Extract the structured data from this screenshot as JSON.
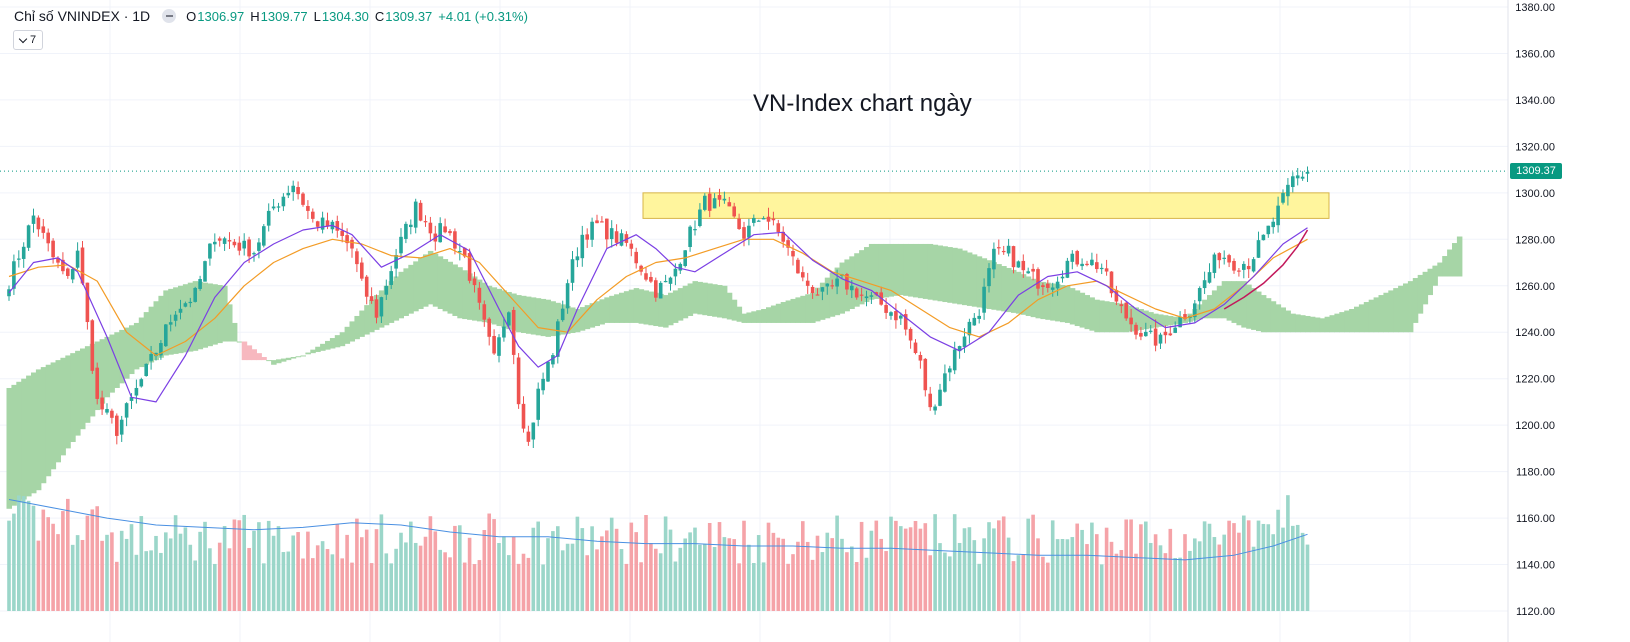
{
  "legend": {
    "symbol": "Chỉ số VNINDEX · 1D",
    "open_label": "O",
    "open": "1306.97",
    "high_label": "H",
    "high": "1309.77",
    "low_label": "L",
    "low": "1304.30",
    "close_label": "C",
    "close": "1309.37",
    "change": "+4.01 (+0.31%)"
  },
  "indicators_button": {
    "count": "7"
  },
  "annotation": "VN-Index chart ngày",
  "last_price_label": "1309.37",
  "colors": {
    "up": "#26a69a",
    "down": "#ef5350",
    "volume_up": "#9bd6c9",
    "volume_down": "#f5a3a8",
    "cloud_bull": "#a6d5a6",
    "cloud_bear": "#f7b8bf",
    "ma_purple": "#7b3fe4",
    "ma_orange": "#f39c26",
    "ma_red": "#c2185b",
    "volume_ma": "#4a90e2",
    "zone_fill": "#fff59d",
    "zone_border": "#d7b548"
  },
  "chart_data": {
    "type": "candlestick",
    "title": "VN-Index chart ngày",
    "timeframe": "1D",
    "ylim": [
      1120,
      1380
    ],
    "y_ticks": [
      "1380.00",
      "1360.00",
      "1340.00",
      "1320.00",
      "1300.00",
      "1280.00",
      "1260.00",
      "1240.00",
      "1220.00",
      "1200.00",
      "1180.00",
      "1160.00",
      "1140.00",
      "1120.00"
    ],
    "y_tick_values": [
      1380,
      1360,
      1340,
      1320,
      1300,
      1280,
      1260,
      1240,
      1220,
      1200,
      1180,
      1160,
      1140,
      1120
    ],
    "last_price": 1309.37,
    "resistance_zone": {
      "from": 1289,
      "to": 1300
    },
    "waypoints": [
      [
        0,
        1262
      ],
      [
        5,
        1290
      ],
      [
        9,
        1272
      ],
      [
        12,
        1262
      ],
      [
        14,
        1276
      ],
      [
        18,
        1210
      ],
      [
        22,
        1198
      ],
      [
        26,
        1215
      ],
      [
        30,
        1232
      ],
      [
        34,
        1250
      ],
      [
        38,
        1256
      ],
      [
        42,
        1282
      ],
      [
        46,
        1278
      ],
      [
        50,
        1275
      ],
      [
        54,
        1294
      ],
      [
        58,
        1304
      ],
      [
        62,
        1288
      ],
      [
        66,
        1285
      ],
      [
        70,
        1276
      ],
      [
        72,
        1260
      ],
      [
        75,
        1248
      ],
      [
        79,
        1274
      ],
      [
        83,
        1294
      ],
      [
        87,
        1282
      ],
      [
        89,
        1285
      ],
      [
        93,
        1272
      ],
      [
        96,
        1250
      ],
      [
        99,
        1228
      ],
      [
        102,
        1252
      ],
      [
        104,
        1212
      ],
      [
        106,
        1192
      ],
      [
        108,
        1214
      ],
      [
        111,
        1232
      ],
      [
        114,
        1262
      ],
      [
        117,
        1282
      ],
      [
        120,
        1286
      ],
      [
        123,
        1282
      ],
      [
        126,
        1278
      ],
      [
        129,
        1268
      ],
      [
        132,
        1258
      ],
      [
        135,
        1262
      ],
      [
        138,
        1278
      ],
      [
        142,
        1296
      ],
      [
        146,
        1294
      ],
      [
        150,
        1282
      ],
      [
        154,
        1291
      ],
      [
        158,
        1280
      ],
      [
        162,
        1262
      ],
      [
        166,
        1256
      ],
      [
        170,
        1262
      ],
      [
        174,
        1256
      ],
      [
        178,
        1252
      ],
      [
        182,
        1246
      ],
      [
        186,
        1226
      ],
      [
        188,
        1206
      ],
      [
        191,
        1222
      ],
      [
        195,
        1240
      ],
      [
        198,
        1250
      ],
      [
        201,
        1273
      ],
      [
        204,
        1274
      ],
      [
        207,
        1266
      ],
      [
        210,
        1262
      ],
      [
        213,
        1262
      ],
      [
        216,
        1270
      ],
      [
        219,
        1272
      ],
      [
        223,
        1268
      ],
      [
        226,
        1252
      ],
      [
        229,
        1244
      ],
      [
        232,
        1238
      ],
      [
        235,
        1236
      ],
      [
        238,
        1244
      ],
      [
        241,
        1250
      ],
      [
        244,
        1262
      ],
      [
        247,
        1274
      ],
      [
        250,
        1270
      ],
      [
        253,
        1270
      ],
      [
        256,
        1280
      ],
      [
        259,
        1292
      ],
      [
        262,
        1306
      ],
      [
        265,
        1309
      ]
    ],
    "ma_fast_points": [
      [
        0,
        1257
      ],
      [
        5,
        1270
      ],
      [
        10,
        1272
      ],
      [
        14,
        1266
      ],
      [
        20,
        1238
      ],
      [
        25,
        1212
      ],
      [
        30,
        1210
      ],
      [
        36,
        1230
      ],
      [
        42,
        1255
      ],
      [
        48,
        1270
      ],
      [
        54,
        1278
      ],
      [
        60,
        1284
      ],
      [
        66,
        1286
      ],
      [
        70,
        1282
      ],
      [
        76,
        1268
      ],
      [
        82,
        1274
      ],
      [
        88,
        1282
      ],
      [
        94,
        1275
      ],
      [
        100,
        1250
      ],
      [
        104,
        1234
      ],
      [
        108,
        1225
      ],
      [
        112,
        1230
      ],
      [
        116,
        1250
      ],
      [
        122,
        1276
      ],
      [
        128,
        1282
      ],
      [
        132,
        1276
      ],
      [
        136,
        1268
      ],
      [
        140,
        1266
      ],
      [
        146,
        1274
      ],
      [
        152,
        1282
      ],
      [
        158,
        1283
      ],
      [
        164,
        1271
      ],
      [
        170,
        1263
      ],
      [
        176,
        1258
      ],
      [
        182,
        1248
      ],
      [
        188,
        1238
      ],
      [
        194,
        1232
      ],
      [
        200,
        1240
      ],
      [
        206,
        1256
      ],
      [
        212,
        1264
      ],
      [
        218,
        1266
      ],
      [
        224,
        1260
      ],
      [
        230,
        1250
      ],
      [
        236,
        1242
      ],
      [
        242,
        1244
      ],
      [
        248,
        1252
      ],
      [
        254,
        1264
      ],
      [
        260,
        1278
      ],
      [
        265,
        1285
      ]
    ],
    "ma_slow_points": [
      [
        0,
        1264
      ],
      [
        6,
        1268
      ],
      [
        12,
        1269
      ],
      [
        18,
        1262
      ],
      [
        24,
        1240
      ],
      [
        30,
        1230
      ],
      [
        36,
        1236
      ],
      [
        42,
        1246
      ],
      [
        48,
        1260
      ],
      [
        54,
        1270
      ],
      [
        60,
        1276
      ],
      [
        66,
        1280
      ],
      [
        72,
        1278
      ],
      [
        78,
        1273
      ],
      [
        84,
        1272
      ],
      [
        90,
        1276
      ],
      [
        96,
        1270
      ],
      [
        102,
        1256
      ],
      [
        108,
        1242
      ],
      [
        114,
        1240
      ],
      [
        120,
        1254
      ],
      [
        126,
        1264
      ],
      [
        132,
        1270
      ],
      [
        138,
        1272
      ],
      [
        144,
        1276
      ],
      [
        150,
        1280
      ],
      [
        156,
        1280
      ],
      [
        162,
        1274
      ],
      [
        168,
        1266
      ],
      [
        174,
        1262
      ],
      [
        180,
        1258
      ],
      [
        186,
        1250
      ],
      [
        192,
        1242
      ],
      [
        198,
        1238
      ],
      [
        204,
        1244
      ],
      [
        210,
        1254
      ],
      [
        216,
        1260
      ],
      [
        222,
        1262
      ],
      [
        228,
        1256
      ],
      [
        234,
        1250
      ],
      [
        240,
        1246
      ],
      [
        246,
        1250
      ],
      [
        252,
        1260
      ],
      [
        258,
        1272
      ],
      [
        265,
        1280
      ]
    ],
    "ma_red_points": [
      [
        248,
        1250
      ],
      [
        252,
        1255
      ],
      [
        256,
        1261
      ],
      [
        260,
        1269
      ],
      [
        263,
        1277
      ],
      [
        265,
        1284
      ]
    ],
    "cloud_top_points": [
      [
        0,
        1216
      ],
      [
        6,
        1224
      ],
      [
        12,
        1230
      ],
      [
        20,
        1238
      ],
      [
        26,
        1244
      ],
      [
        32,
        1258
      ],
      [
        38,
        1262
      ],
      [
        44,
        1260
      ],
      [
        48,
        1228
      ],
      [
        54,
        1228
      ],
      [
        60,
        1230
      ],
      [
        68,
        1240
      ],
      [
        74,
        1254
      ],
      [
        80,
        1266
      ],
      [
        86,
        1275
      ],
      [
        92,
        1268
      ],
      [
        98,
        1260
      ],
      [
        104,
        1256
      ],
      [
        110,
        1254
      ],
      [
        116,
        1250
      ],
      [
        122,
        1255
      ],
      [
        128,
        1259
      ],
      [
        134,
        1256
      ],
      [
        140,
        1262
      ],
      [
        146,
        1260
      ],
      [
        150,
        1248
      ],
      [
        154,
        1250
      ],
      [
        158,
        1253
      ],
      [
        164,
        1257
      ],
      [
        170,
        1270
      ],
      [
        176,
        1278
      ],
      [
        182,
        1278
      ],
      [
        188,
        1278
      ],
      [
        194,
        1276
      ],
      [
        200,
        1271
      ],
      [
        206,
        1266
      ],
      [
        210,
        1262
      ],
      [
        216,
        1260
      ],
      [
        222,
        1254
      ],
      [
        228,
        1252
      ],
      [
        234,
        1248
      ],
      [
        240,
        1246
      ],
      [
        244,
        1254
      ],
      [
        248,
        1262
      ],
      [
        252,
        1262
      ],
      [
        256,
        1256
      ],
      [
        262,
        1248
      ],
      [
        268,
        1246
      ],
      [
        274,
        1250
      ],
      [
        280,
        1256
      ],
      [
        286,
        1262
      ],
      [
        292,
        1270
      ],
      [
        297,
        1284
      ]
    ],
    "cloud_bottom_points": [
      [
        0,
        1164
      ],
      [
        6,
        1172
      ],
      [
        12,
        1190
      ],
      [
        20,
        1212
      ],
      [
        26,
        1224
      ],
      [
        32,
        1230
      ],
      [
        38,
        1232
      ],
      [
        44,
        1236
      ],
      [
        48,
        1236
      ],
      [
        54,
        1226
      ],
      [
        60,
        1230
      ],
      [
        68,
        1234
      ],
      [
        74,
        1240
      ],
      [
        80,
        1246
      ],
      [
        86,
        1252
      ],
      [
        92,
        1246
      ],
      [
        98,
        1244
      ],
      [
        104,
        1240
      ],
      [
        110,
        1238
      ],
      [
        116,
        1240
      ],
      [
        122,
        1244
      ],
      [
        128,
        1244
      ],
      [
        134,
        1242
      ],
      [
        140,
        1248
      ],
      [
        146,
        1246
      ],
      [
        150,
        1244
      ],
      [
        154,
        1244
      ],
      [
        158,
        1244
      ],
      [
        164,
        1244
      ],
      [
        170,
        1248
      ],
      [
        176,
        1254
      ],
      [
        182,
        1256
      ],
      [
        188,
        1254
      ],
      [
        194,
        1252
      ],
      [
        200,
        1250
      ],
      [
        206,
        1248
      ],
      [
        210,
        1246
      ],
      [
        216,
        1244
      ],
      [
        222,
        1240
      ],
      [
        228,
        1240
      ],
      [
        234,
        1242
      ],
      [
        240,
        1244
      ],
      [
        244,
        1246
      ],
      [
        248,
        1246
      ],
      [
        252,
        1242
      ],
      [
        256,
        1240
      ],
      [
        262,
        1240
      ],
      [
        268,
        1240
      ],
      [
        274,
        1240
      ],
      [
        280,
        1240
      ],
      [
        286,
        1240
      ],
      [
        292,
        1264
      ],
      [
        297,
        1264
      ]
    ],
    "volume_ma_points": [
      [
        0,
        1168
      ],
      [
        10,
        1164
      ],
      [
        20,
        1160
      ],
      [
        30,
        1157
      ],
      [
        40,
        1156
      ],
      [
        50,
        1155
      ],
      [
        60,
        1156
      ],
      [
        70,
        1158
      ],
      [
        80,
        1157
      ],
      [
        90,
        1154
      ],
      [
        100,
        1152
      ],
      [
        110,
        1152
      ],
      [
        120,
        1150
      ],
      [
        130,
        1149
      ],
      [
        140,
        1149
      ],
      [
        150,
        1148
      ],
      [
        160,
        1148
      ],
      [
        170,
        1147
      ],
      [
        180,
        1147
      ],
      [
        190,
        1146
      ],
      [
        200,
        1145
      ],
      [
        210,
        1144
      ],
      [
        220,
        1144
      ],
      [
        230,
        1143
      ],
      [
        240,
        1142
      ],
      [
        250,
        1144
      ],
      [
        258,
        1148
      ],
      [
        265,
        1153
      ]
    ]
  }
}
